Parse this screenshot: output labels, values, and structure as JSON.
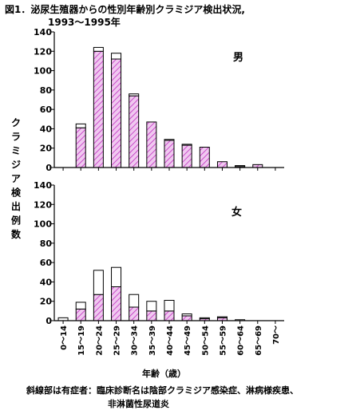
{
  "figure": {
    "title_line1": "図1．泌尿生殖器からの性別年齢別クラミジア検出状況,",
    "title_line2": "1993〜1995年",
    "ylabel": "クラミジア検出例数",
    "xlabel": "年齢（歳）",
    "footnote_line1": "斜線部は有症者：臨床診断名は陰部クラミジア感染症、淋病様疾患、",
    "footnote_line2": "非淋菌性尿道炎"
  },
  "chart_data": [
    {
      "type": "bar",
      "stacked": true,
      "panel": "男",
      "categories": [
        "0〜14",
        "15〜19",
        "20〜24",
        "25〜29",
        "30〜34",
        "35〜39",
        "40〜44",
        "45〜49",
        "50〜54",
        "55〜59",
        "60〜64",
        "65〜69",
        "70〜"
      ],
      "series": [
        {
          "name": "有症者",
          "pattern": "hatched",
          "color": "#e0a0e0",
          "values": [
            0,
            41,
            120,
            112,
            74,
            47,
            28,
            23,
            21,
            6,
            1,
            3,
            0
          ]
        },
        {
          "pattern": "blank",
          "color": "#ffffff",
          "values": [
            0,
            4,
            4,
            6,
            2,
            0,
            1,
            1,
            0,
            0,
            1,
            0,
            0
          ]
        }
      ],
      "yticks": [
        0,
        20,
        40,
        60,
        80,
        100,
        120,
        140
      ],
      "ylim": [
        0,
        140
      ]
    },
    {
      "type": "bar",
      "stacked": true,
      "panel": "女",
      "categories": [
        "0〜14",
        "15〜19",
        "20〜24",
        "25〜29",
        "30〜34",
        "35〜39",
        "40〜44",
        "45〜49",
        "50〜54",
        "55〜59",
        "60〜64",
        "65〜69",
        "70〜"
      ],
      "series": [
        {
          "name": "有症者",
          "pattern": "hatched",
          "color": "#e0a0e0",
          "values": [
            0,
            12,
            27,
            35,
            14,
            10,
            10,
            5,
            2,
            3,
            0,
            0,
            0
          ]
        },
        {
          "pattern": "blank",
          "color": "#ffffff",
          "values": [
            3,
            7,
            25,
            20,
            13,
            10,
            11,
            2,
            1,
            1,
            1,
            0,
            0
          ]
        }
      ],
      "yticks": [
        0,
        20,
        40,
        60,
        80,
        100,
        120,
        140
      ],
      "ylim": [
        0,
        140
      ]
    }
  ]
}
